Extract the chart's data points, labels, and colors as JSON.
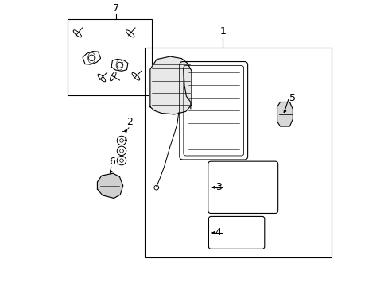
{
  "title": "",
  "bg_color": "#ffffff",
  "line_color": "#000000",
  "line_width": 0.8,
  "fig_width": 4.89,
  "fig_height": 3.6,
  "dpi": 100,
  "label_fontsize": 9
}
